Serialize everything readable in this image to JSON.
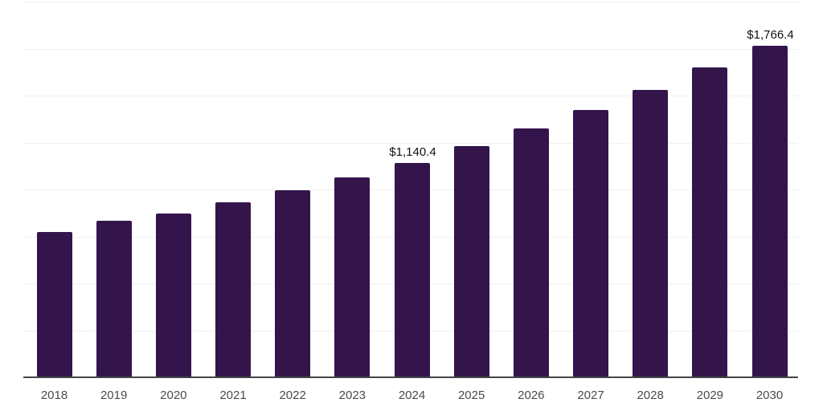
{
  "chart_data": {
    "type": "bar",
    "title": "",
    "xlabel": "",
    "ylabel": "",
    "categories": [
      "2018",
      "2019",
      "2020",
      "2021",
      "2022",
      "2023",
      "2024",
      "2025",
      "2026",
      "2027",
      "2028",
      "2029",
      "2030"
    ],
    "values": [
      775,
      835,
      870,
      930,
      995,
      1065,
      1140.4,
      1230,
      1325,
      1425,
      1530,
      1650,
      1766.4
    ],
    "annotations": [
      {
        "category": "2024",
        "text": "$1,140.4"
      },
      {
        "category": "2030",
        "text": "$1,766.4"
      }
    ],
    "ylim": [
      0,
      2000
    ],
    "gridline_step": 250,
    "grid": "on",
    "legend": "none",
    "colors": {
      "bar": "#33154C",
      "gridline": "#F0F0F0",
      "axis": "#444444",
      "tick_label": "#4A4A4A",
      "value_label": "#111111",
      "background": "#FFFFFF"
    }
  }
}
